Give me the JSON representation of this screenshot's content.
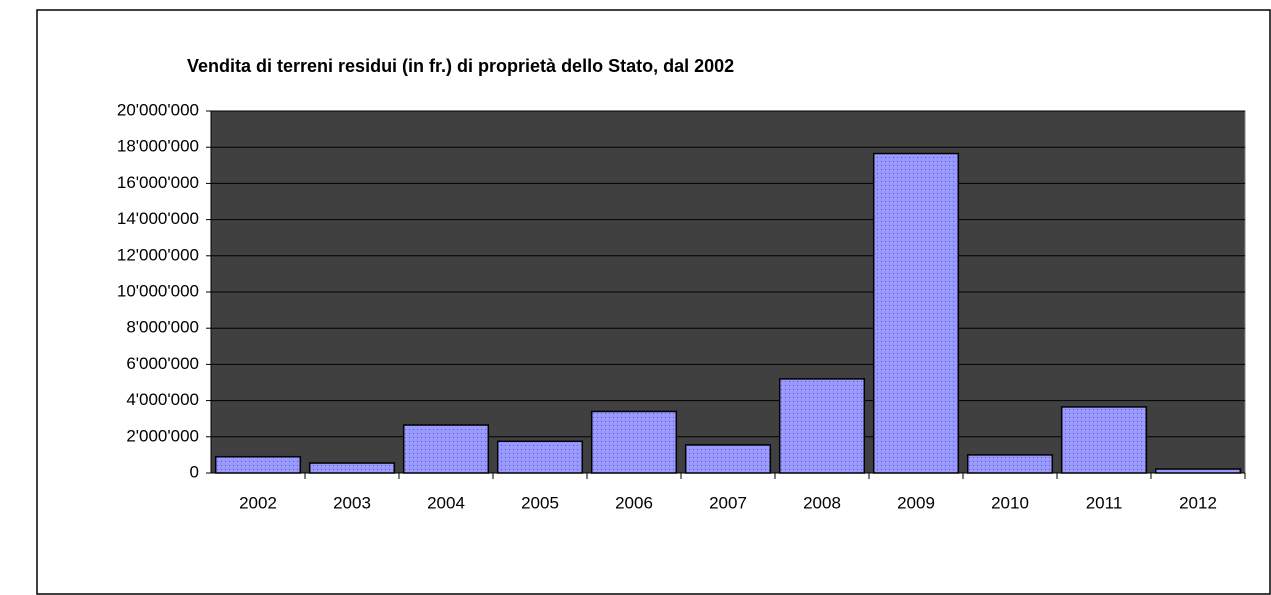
{
  "chart_data": {
    "type": "bar",
    "title": "Vendita di terreni residui (in fr.) di proprietà dello Stato, dal 2002",
    "categories": [
      "2002",
      "2003",
      "2004",
      "2005",
      "2006",
      "2007",
      "2008",
      "2009",
      "2010",
      "2011",
      "2012"
    ],
    "values": [
      900000,
      550000,
      2650000,
      1750000,
      3400000,
      1550000,
      5200000,
      17650000,
      1000000,
      3650000,
      220000
    ],
    "color": "#9999ff",
    "ylim": [
      0,
      20000000
    ],
    "yticks": [
      0,
      {
        "value": 2000000,
        "label": "2'000'000"
      },
      {
        "value": 4000000,
        "label": "4'000'000"
      },
      {
        "value": 6000000,
        "label": "6'000'000"
      },
      {
        "value": 8000000,
        "label": "8'000'000"
      },
      {
        "value": 10000000,
        "label": "10'000'000"
      },
      {
        "value": 12000000,
        "label": "12'000'000"
      },
      {
        "value": 14000000,
        "label": "14'000'000"
      },
      {
        "value": 16000000,
        "label": "16'000'000"
      },
      {
        "value": 18000000,
        "label": "18'000'000"
      },
      {
        "value": 20000000,
        "label": "20'000'000"
      }
    ],
    "grid": true
  }
}
